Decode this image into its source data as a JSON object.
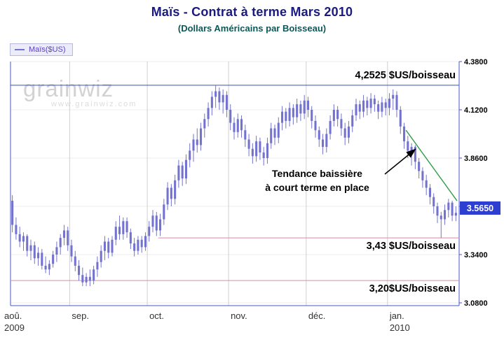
{
  "header": {
    "title": "Maïs - Contrat à terme Mars 2010",
    "subtitle": "(Dollars Américains par Boisseau)"
  },
  "legend": {
    "label": "Maïs($US)",
    "position": "top-left"
  },
  "watermark": {
    "name": "grainwiz",
    "url": "www.grainwiz.com"
  },
  "colors": {
    "title": "#1a1a80",
    "subtitle": "#0e5757",
    "candle": "#7373cf",
    "resistance": "#3a4bd8",
    "support": "#d98ba0",
    "trendline": "#2f9e44",
    "badge_bg": "#2e3ed0",
    "axis": "#4a55c8",
    "grid": "#cfcfcf",
    "hgrid": "#ededed",
    "legend_text": "#5b3fc4",
    "tick_text": "#000000",
    "month_text": "#333333"
  },
  "annotations": {
    "resistance_label": "4,2525 $US/boisseau",
    "support1_label": "3,43 $US/boisseau",
    "support2_label": "3,20$US/boisseau",
    "trend_note_line1": "Tendance baissière",
    "trend_note_line2": "à court terme en place"
  },
  "chart_data": {
    "type": "candlestick",
    "title": "Maïs - Contrat à terme Mars 2010",
    "subtitle": "(Dollars Américains par Boisseau)",
    "series_name": "Maïs($US)",
    "ylabel": "$US/boisseau",
    "ylim": [
      3.08,
      4.38
    ],
    "grid": true,
    "y_ticks": [
      4.38,
      4.12,
      3.86,
      3.6,
      3.34,
      3.08
    ],
    "y_tick_labels": [
      "4.3800",
      "4.1200",
      "3.8600",
      "3.6000",
      "3.3400",
      "3.0800"
    ],
    "x_labels": [
      {
        "label": "aoû.",
        "index": 0,
        "year": "2009"
      },
      {
        "label": "sep.",
        "index": 16
      },
      {
        "label": "oct.",
        "index": 37
      },
      {
        "label": "nov.",
        "index": 59
      },
      {
        "label": "déc.",
        "index": 80
      },
      {
        "label": "jan.",
        "index": 102,
        "year": "2010"
      }
    ],
    "last_price": "3.5650",
    "resistance_line": {
      "price": 4.2525,
      "label": "4,2525 $US/boisseau"
    },
    "support_lines": [
      {
        "price": 3.43,
        "label": "3,43 $US/boisseau",
        "start_index": 40
      },
      {
        "price": 3.2,
        "label": "3,20$US/boisseau",
        "start_index": 0
      }
    ],
    "trendline": {
      "from_index": 106.5,
      "from_price": 4.01,
      "to_index": 120.3,
      "to_price": 3.63
    },
    "ohlc_format": [
      "open",
      "high",
      "low",
      "close"
    ],
    "candles_ohlc": [
      [
        3.63,
        3.66,
        3.46,
        3.5
      ],
      [
        3.5,
        3.54,
        3.42,
        3.45
      ],
      [
        3.45,
        3.49,
        3.38,
        3.41
      ],
      [
        3.41,
        3.46,
        3.36,
        3.44
      ],
      [
        3.44,
        3.45,
        3.33,
        3.36
      ],
      [
        3.36,
        3.42,
        3.31,
        3.39
      ],
      [
        3.39,
        3.41,
        3.29,
        3.32
      ],
      [
        3.32,
        3.38,
        3.28,
        3.35
      ],
      [
        3.35,
        3.37,
        3.26,
        3.28
      ],
      [
        3.28,
        3.33,
        3.24,
        3.26
      ],
      [
        3.26,
        3.31,
        3.23,
        3.29
      ],
      [
        3.29,
        3.36,
        3.27,
        3.34
      ],
      [
        3.34,
        3.41,
        3.3,
        3.38
      ],
      [
        3.38,
        3.45,
        3.34,
        3.43
      ],
      [
        3.43,
        3.5,
        3.39,
        3.47
      ],
      [
        3.47,
        3.49,
        3.36,
        3.39
      ],
      [
        3.39,
        3.42,
        3.3,
        3.33
      ],
      [
        3.33,
        3.36,
        3.25,
        3.28
      ],
      [
        3.28,
        3.31,
        3.2,
        3.23
      ],
      [
        3.23,
        3.27,
        3.17,
        3.19
      ],
      [
        3.19,
        3.24,
        3.17,
        3.22
      ],
      [
        3.22,
        3.26,
        3.17,
        3.2
      ],
      [
        3.2,
        3.28,
        3.18,
        3.26
      ],
      [
        3.26,
        3.33,
        3.22,
        3.3
      ],
      [
        3.3,
        3.39,
        3.27,
        3.36
      ],
      [
        3.36,
        3.44,
        3.31,
        3.41
      ],
      [
        3.41,
        3.43,
        3.32,
        3.35
      ],
      [
        3.35,
        3.44,
        3.33,
        3.42
      ],
      [
        3.42,
        3.52,
        3.39,
        3.49
      ],
      [
        3.49,
        3.55,
        3.42,
        3.45
      ],
      [
        3.45,
        3.54,
        3.42,
        3.52
      ],
      [
        3.52,
        3.54,
        3.43,
        3.46
      ],
      [
        3.46,
        3.48,
        3.37,
        3.4
      ],
      [
        3.4,
        3.43,
        3.33,
        3.36
      ],
      [
        3.36,
        3.44,
        3.34,
        3.42
      ],
      [
        3.42,
        3.44,
        3.35,
        3.38
      ],
      [
        3.38,
        3.46,
        3.36,
        3.44
      ],
      [
        3.44,
        3.52,
        3.41,
        3.49
      ],
      [
        3.49,
        3.58,
        3.46,
        3.55
      ],
      [
        3.55,
        3.57,
        3.44,
        3.47
      ],
      [
        3.47,
        3.56,
        3.44,
        3.53
      ],
      [
        3.53,
        3.64,
        3.5,
        3.61
      ],
      [
        3.61,
        3.73,
        3.58,
        3.7
      ],
      [
        3.7,
        3.72,
        3.6,
        3.64
      ],
      [
        3.64,
        3.77,
        3.61,
        3.74
      ],
      [
        3.74,
        3.85,
        3.7,
        3.82
      ],
      [
        3.82,
        3.84,
        3.71,
        3.75
      ],
      [
        3.75,
        3.88,
        3.72,
        3.85
      ],
      [
        3.85,
        3.94,
        3.81,
        3.9
      ],
      [
        3.9,
        3.99,
        3.84,
        3.96
      ],
      [
        3.96,
        4.02,
        3.89,
        3.93
      ],
      [
        3.93,
        4.05,
        3.9,
        4.02
      ],
      [
        4.02,
        4.1,
        3.97,
        4.07
      ],
      [
        4.07,
        4.16,
        4.03,
        4.13
      ],
      [
        4.13,
        4.22,
        4.09,
        4.19
      ],
      [
        4.19,
        4.25,
        4.13,
        4.22
      ],
      [
        4.22,
        4.24,
        4.12,
        4.16
      ],
      [
        4.16,
        4.23,
        4.1,
        4.2
      ],
      [
        4.2,
        4.22,
        4.08,
        4.12
      ],
      [
        4.12,
        4.15,
        4.01,
        4.05
      ],
      [
        4.05,
        4.08,
        3.96,
        4.0
      ],
      [
        4.0,
        4.1,
        3.97,
        4.07
      ],
      [
        4.07,
        4.09,
        3.97,
        4.01
      ],
      [
        4.01,
        4.04,
        3.92,
        3.96
      ],
      [
        3.96,
        3.99,
        3.87,
        3.91
      ],
      [
        3.91,
        3.94,
        3.83,
        3.87
      ],
      [
        3.87,
        3.98,
        3.84,
        3.95
      ],
      [
        3.95,
        3.97,
        3.85,
        3.89
      ],
      [
        3.89,
        3.92,
        3.82,
        3.86
      ],
      [
        3.86,
        3.97,
        3.83,
        3.94
      ],
      [
        3.94,
        4.05,
        3.91,
        4.02
      ],
      [
        4.02,
        4.04,
        3.93,
        3.97
      ],
      [
        3.97,
        4.08,
        3.94,
        4.05
      ],
      [
        4.05,
        4.14,
        4.01,
        4.11
      ],
      [
        4.11,
        4.13,
        4.02,
        4.06
      ],
      [
        4.06,
        4.16,
        4.03,
        4.13
      ],
      [
        4.13,
        4.15,
        4.04,
        4.08
      ],
      [
        4.08,
        4.18,
        4.05,
        4.15
      ],
      [
        4.15,
        4.17,
        4.06,
        4.1
      ],
      [
        4.1,
        4.2,
        4.07,
        4.17
      ],
      [
        4.17,
        4.19,
        4.08,
        4.12
      ],
      [
        4.12,
        4.14,
        4.02,
        4.06
      ],
      [
        4.06,
        4.09,
        3.97,
        4.01
      ],
      [
        4.01,
        4.03,
        3.92,
        3.96
      ],
      [
        3.96,
        3.99,
        3.88,
        3.92
      ],
      [
        3.92,
        4.02,
        3.89,
        3.99
      ],
      [
        3.99,
        4.09,
        3.96,
        4.06
      ],
      [
        4.06,
        4.15,
        4.03,
        4.12
      ],
      [
        4.12,
        4.14,
        4.03,
        4.07
      ],
      [
        4.07,
        4.1,
        3.98,
        4.02
      ],
      [
        4.02,
        4.05,
        3.93,
        3.97
      ],
      [
        3.97,
        4.06,
        3.94,
        4.03
      ],
      [
        4.03,
        4.12,
        4.0,
        4.09
      ],
      [
        4.09,
        4.18,
        4.06,
        4.15
      ],
      [
        4.15,
        4.17,
        4.07,
        4.11
      ],
      [
        4.11,
        4.2,
        4.08,
        4.17
      ],
      [
        4.17,
        4.19,
        4.09,
        4.13
      ],
      [
        4.13,
        4.21,
        4.1,
        4.18
      ],
      [
        4.18,
        4.2,
        4.11,
        4.15
      ],
      [
        4.15,
        4.17,
        4.07,
        4.11
      ],
      [
        4.11,
        4.19,
        4.08,
        4.16
      ],
      [
        4.16,
        4.18,
        4.09,
        4.13
      ],
      [
        4.13,
        4.21,
        4.09,
        4.18
      ],
      [
        4.18,
        4.23,
        4.12,
        4.2
      ],
      [
        4.2,
        4.22,
        4.08,
        4.12
      ],
      [
        4.12,
        4.14,
        3.99,
        4.03
      ],
      [
        4.03,
        4.05,
        3.91,
        3.95
      ],
      [
        3.95,
        3.98,
        3.86,
        3.9
      ],
      [
        3.9,
        3.94,
        3.82,
        3.92
      ],
      [
        3.92,
        3.93,
        3.8,
        3.84
      ],
      [
        3.84,
        3.86,
        3.75,
        3.79
      ],
      [
        3.79,
        3.81,
        3.7,
        3.74
      ],
      [
        3.74,
        3.77,
        3.66,
        3.7
      ],
      [
        3.7,
        3.72,
        3.61,
        3.65
      ],
      [
        3.65,
        3.67,
        3.56,
        3.6
      ],
      [
        3.6,
        3.62,
        3.51,
        3.55
      ],
      [
        3.55,
        3.57,
        3.43,
        3.53
      ],
      [
        3.53,
        3.61,
        3.5,
        3.58
      ],
      [
        3.58,
        3.64,
        3.54,
        3.62
      ],
      [
        3.62,
        3.63,
        3.52,
        3.55
      ],
      [
        3.55,
        3.6,
        3.52,
        3.565
      ]
    ]
  }
}
